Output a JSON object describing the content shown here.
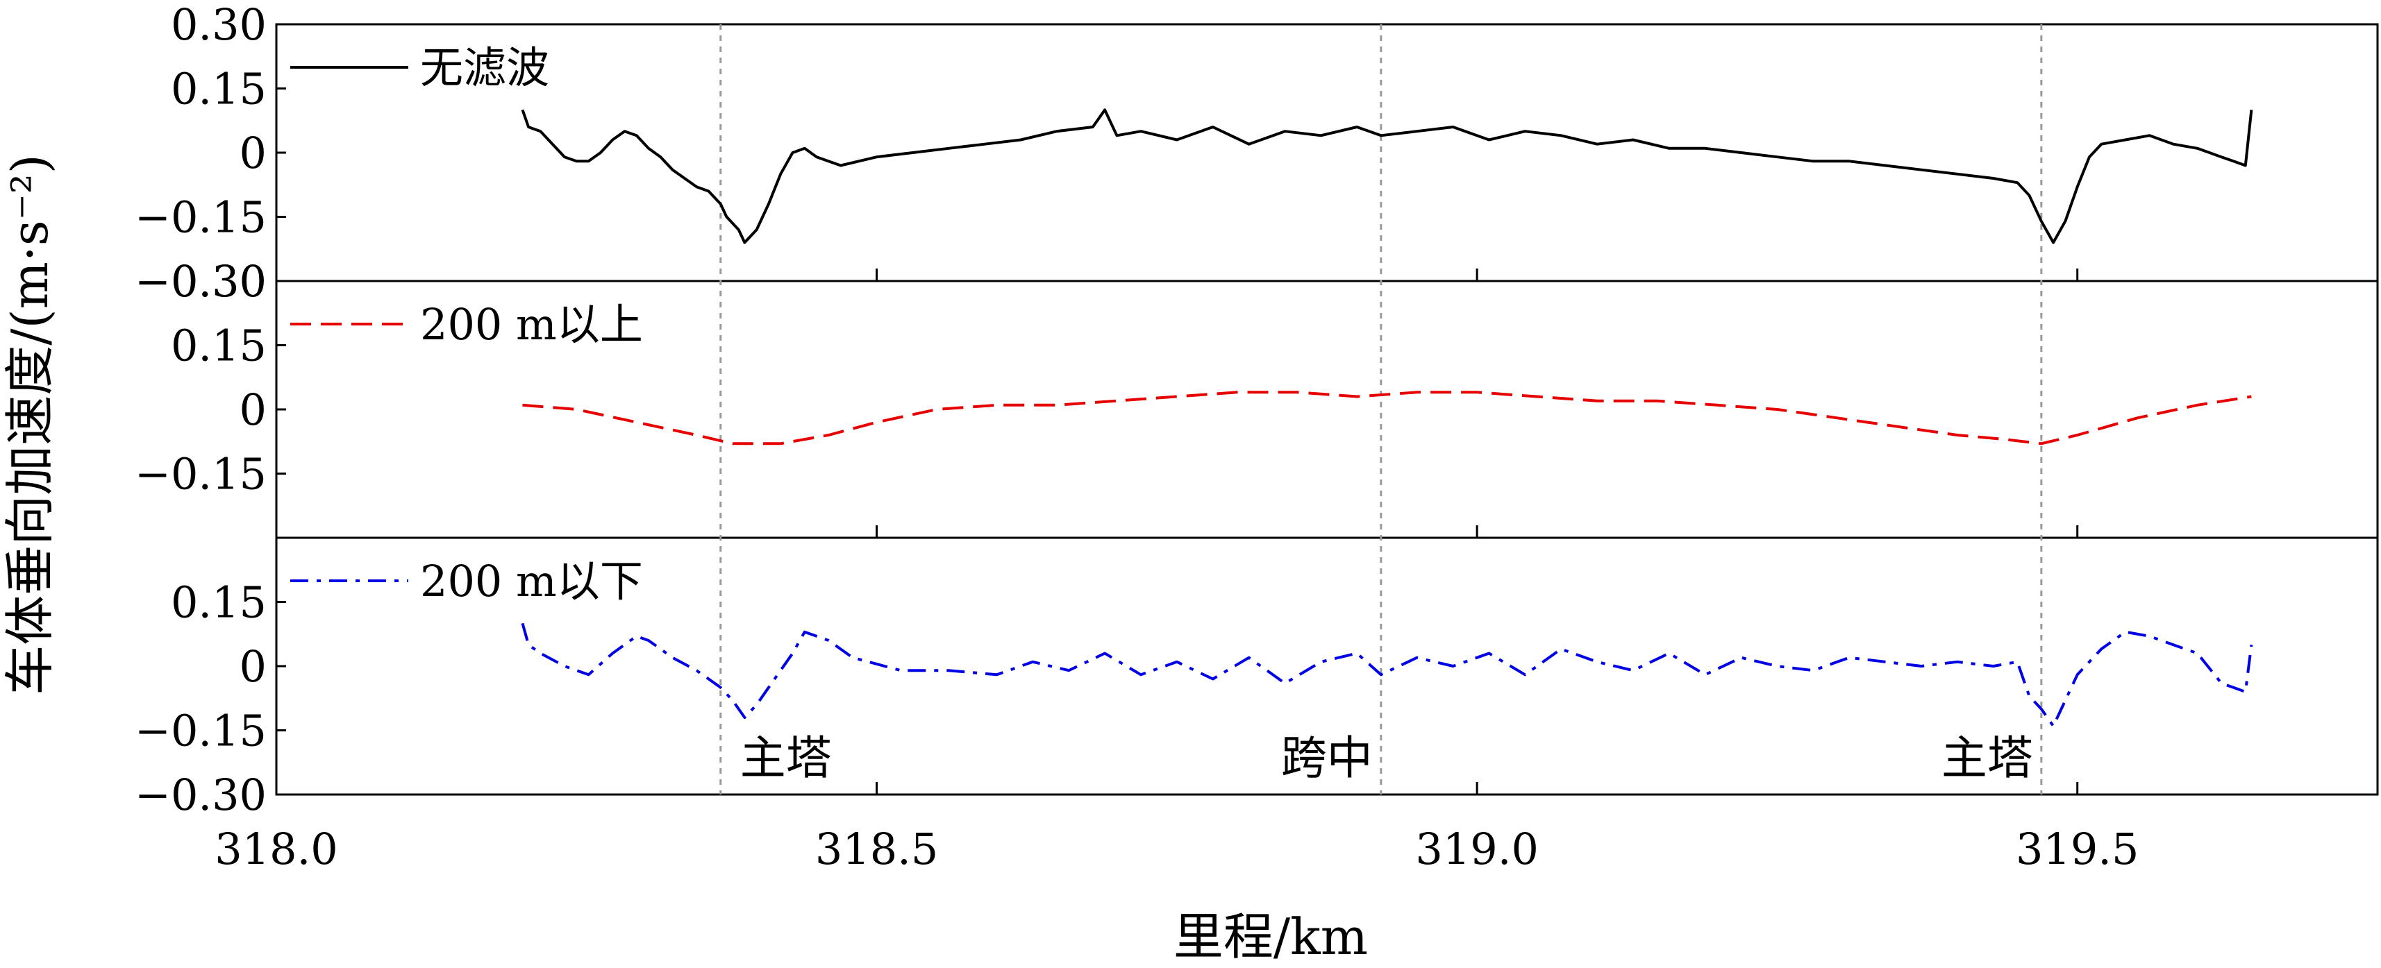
{
  "chart_data": {
    "type": "line",
    "xlabel": "里程/km",
    "ylabel": "车体垂向加速度/(m·s⁻²)",
    "xlim": [
      318.0,
      319.75
    ],
    "x_ticks": [
      318.0,
      318.5,
      319.0,
      319.5
    ],
    "x_tick_labels": [
      "318.0",
      "318.5",
      "319.0",
      "319.5"
    ],
    "grid": false,
    "reference_lines": [
      {
        "x": 318.37,
        "label": "主塔"
      },
      {
        "x": 318.92,
        "label": "跨中"
      },
      {
        "x": 319.47,
        "label": "主塔"
      }
    ],
    "panels": [
      {
        "ylim": [
          -0.3,
          0.3
        ],
        "y_ticks": [
          -0.3,
          -0.15,
          0,
          0.15,
          0.3
        ],
        "y_tick_labels": [
          "−0.30",
          "−0.15",
          "0",
          "0.15",
          "0.30"
        ],
        "legend_position": "top-left",
        "series": [
          {
            "name": "无滤波",
            "color": "#000000",
            "dash": "solid",
            "x": [
              318.205,
              318.21,
              318.22,
              318.23,
              318.24,
              318.25,
              318.26,
              318.27,
              318.28,
              318.29,
              318.3,
              318.31,
              318.32,
              318.33,
              318.34,
              318.35,
              318.36,
              318.37,
              318.375,
              318.385,
              318.39,
              318.4,
              318.41,
              318.42,
              318.43,
              318.44,
              318.45,
              318.47,
              318.5,
              318.53,
              318.56,
              318.59,
              318.62,
              318.65,
              318.68,
              318.69,
              318.7,
              318.72,
              318.75,
              318.78,
              318.81,
              318.84,
              318.87,
              318.9,
              318.92,
              318.95,
              318.98,
              319.01,
              319.04,
              319.07,
              319.1,
              319.13,
              319.16,
              319.19,
              319.22,
              319.25,
              319.28,
              319.31,
              319.34,
              319.37,
              319.4,
              319.43,
              319.45,
              319.46,
              319.47,
              319.48,
              319.49,
              319.5,
              319.51,
              319.52,
              319.54,
              319.56,
              319.58,
              319.6,
              319.62,
              319.63,
              319.64,
              319.645
            ],
            "values": [
              0.1,
              0.06,
              0.05,
              0.02,
              -0.01,
              -0.02,
              -0.02,
              0.0,
              0.03,
              0.05,
              0.04,
              0.01,
              -0.01,
              -0.04,
              -0.06,
              -0.08,
              -0.09,
              -0.12,
              -0.15,
              -0.18,
              -0.21,
              -0.18,
              -0.12,
              -0.05,
              0.0,
              0.01,
              -0.01,
              -0.03,
              -0.01,
              0.0,
              0.01,
              0.02,
              0.03,
              0.05,
              0.06,
              0.1,
              0.04,
              0.05,
              0.03,
              0.06,
              0.02,
              0.05,
              0.04,
              0.06,
              0.04,
              0.05,
              0.06,
              0.03,
              0.05,
              0.04,
              0.02,
              0.03,
              0.01,
              0.01,
              0.0,
              -0.01,
              -0.02,
              -0.02,
              -0.03,
              -0.04,
              -0.05,
              -0.06,
              -0.07,
              -0.1,
              -0.16,
              -0.21,
              -0.16,
              -0.08,
              -0.01,
              0.02,
              0.03,
              0.04,
              0.02,
              0.01,
              -0.01,
              -0.02,
              -0.03,
              0.1
            ]
          }
        ]
      },
      {
        "ylim": [
          -0.3,
          0.3
        ],
        "y_ticks": [
          -0.15,
          0,
          0.15,
          0.3
        ],
        "y_tick_labels": [
          "−0.15",
          "0",
          "0.15",
          "0.30"
        ],
        "legend_position": "top-left",
        "series": [
          {
            "name": "200 m以上",
            "color": "#e60000",
            "dash": "dashed",
            "x": [
              318.205,
              318.25,
              318.3,
              318.35,
              318.38,
              318.42,
              318.46,
              318.5,
              318.55,
              318.6,
              318.65,
              318.7,
              318.75,
              318.8,
              318.85,
              318.9,
              318.95,
              319.0,
              319.05,
              319.1,
              319.15,
              319.2,
              319.25,
              319.3,
              319.35,
              319.4,
              319.44,
              319.47,
              319.5,
              319.55,
              319.6,
              319.645
            ],
            "values": [
              0.01,
              0.0,
              -0.03,
              -0.06,
              -0.08,
              -0.08,
              -0.06,
              -0.03,
              0.0,
              0.01,
              0.01,
              0.02,
              0.03,
              0.04,
              0.04,
              0.03,
              0.04,
              0.04,
              0.03,
              0.02,
              0.02,
              0.01,
              0.0,
              -0.02,
              -0.04,
              -0.06,
              -0.07,
              -0.08,
              -0.06,
              -0.02,
              0.01,
              0.03
            ]
          }
        ]
      },
      {
        "ylim": [
          -0.3,
          0.3
        ],
        "y_ticks": [
          -0.3,
          -0.15,
          0,
          0.15
        ],
        "y_tick_labels": [
          "−0.30",
          "−0.15",
          "0",
          "0.15"
        ],
        "legend_position": "top-left",
        "series": [
          {
            "name": "200 m以下",
            "color": "#0000e6",
            "dash": "dashdot",
            "x": [
              318.205,
              318.21,
              318.22,
              318.24,
              318.26,
              318.28,
              318.3,
              318.31,
              318.33,
              318.35,
              318.37,
              318.38,
              318.39,
              318.4,
              318.41,
              318.43,
              318.44,
              318.46,
              318.48,
              318.52,
              318.56,
              318.6,
              318.63,
              318.66,
              318.69,
              318.72,
              318.75,
              318.78,
              318.81,
              318.84,
              318.87,
              318.9,
              318.92,
              318.95,
              318.98,
              319.01,
              319.04,
              319.07,
              319.1,
              319.13,
              319.16,
              319.19,
              319.22,
              319.25,
              319.28,
              319.31,
              319.34,
              319.37,
              319.4,
              319.43,
              319.45,
              319.46,
              319.47,
              319.48,
              319.49,
              319.5,
              319.52,
              319.54,
              319.56,
              319.58,
              319.6,
              319.62,
              319.63,
              319.64,
              319.645
            ],
            "values": [
              0.1,
              0.05,
              0.03,
              0.0,
              -0.02,
              0.03,
              0.07,
              0.06,
              0.02,
              -0.01,
              -0.05,
              -0.08,
              -0.12,
              -0.09,
              -0.05,
              0.03,
              0.08,
              0.06,
              0.02,
              -0.01,
              -0.01,
              -0.02,
              0.01,
              -0.01,
              0.03,
              -0.02,
              0.01,
              -0.03,
              0.02,
              -0.04,
              0.01,
              0.03,
              -0.02,
              0.02,
              0.0,
              0.03,
              -0.02,
              0.04,
              0.01,
              -0.01,
              0.03,
              -0.02,
              0.02,
              0.0,
              -0.01,
              0.02,
              0.01,
              0.0,
              0.01,
              0.0,
              0.01,
              -0.07,
              -0.1,
              -0.14,
              -0.08,
              -0.02,
              0.04,
              0.08,
              0.07,
              0.05,
              0.03,
              -0.04,
              -0.05,
              -0.06,
              0.05
            ]
          }
        ]
      }
    ]
  }
}
